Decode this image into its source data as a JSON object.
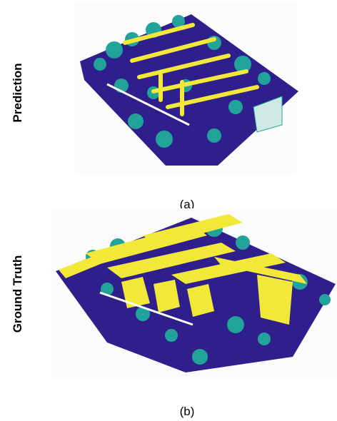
{
  "panels": [
    {
      "label": "Prediction",
      "caption": "(a)"
    },
    {
      "label": "Ground Truth",
      "caption": "(b)"
    }
  ]
}
